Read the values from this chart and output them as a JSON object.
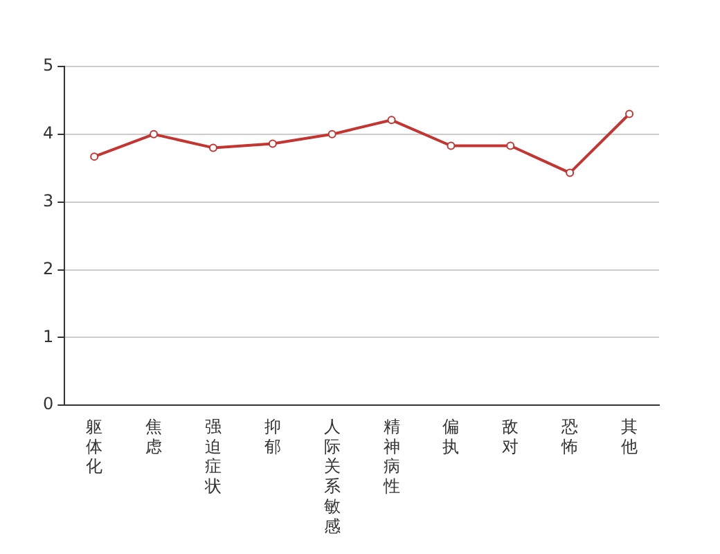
{
  "chart_data": {
    "type": "line",
    "categories": [
      "躯体化",
      "焦虑",
      "强迫症状",
      "抑郁",
      "人际关系敏感",
      "精神病性",
      "偏执",
      "敌对",
      "恐怖",
      "其他"
    ],
    "series": [
      {
        "color": "#c23531",
        "values": [
          3.67,
          4.0,
          3.8,
          3.86,
          4.0,
          4.21,
          3.83,
          3.83,
          3.43,
          4.3
        ]
      }
    ],
    "ylim": [
      0,
      5
    ],
    "yticks": [
      0,
      1,
      2,
      3,
      4,
      5
    ],
    "grid": "y",
    "legend": false,
    "marker": "circle",
    "line_style": "solid"
  }
}
